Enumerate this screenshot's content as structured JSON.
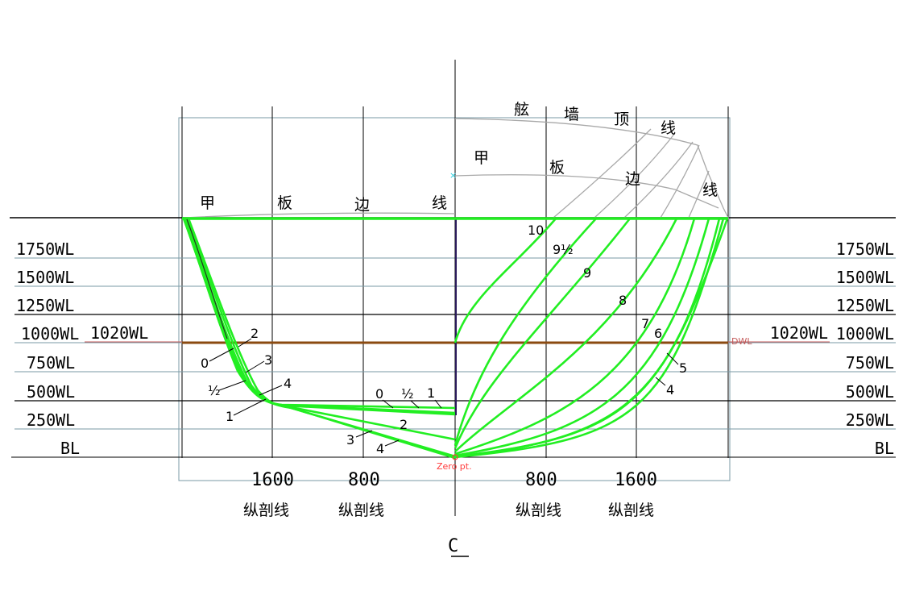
{
  "waterlines_left": [
    "1750WL",
    "1500WL",
    "1250WL",
    "1000WL",
    "750WL",
    "500WL",
    "250WL",
    "BL"
  ],
  "waterlines_right": [
    "1750WL",
    "1500WL",
    "1250WL",
    "1000WL",
    "750WL",
    "500WL",
    "250WL",
    "BL"
  ],
  "design_wl_label": "1020WL",
  "dwl_tag": "DWL",
  "zero_point_label": "Zero pt.",
  "centerline_symbol": "C",
  "buttock_values_left": [
    "1600",
    "800"
  ],
  "buttock_values_right": [
    "800",
    "1600"
  ],
  "buttock_caption": "纵剖线",
  "deck_edge_left_chars": [
    "甲",
    "板",
    "边",
    "线"
  ],
  "deck_edge_right_chars": [
    "甲",
    "板",
    "边",
    "线"
  ],
  "bulwark_top_chars": [
    "舷",
    "墙",
    "顶",
    "线"
  ],
  "stations_aft": [
    "0",
    "½",
    "1",
    "2",
    "3",
    "4"
  ],
  "stations_flat": [
    "0",
    "½",
    "1"
  ],
  "stations_flat_lower": [
    "2",
    "3",
    "4"
  ],
  "stations_fore": [
    "10",
    "9½",
    "9",
    "8",
    "7",
    "6",
    "5",
    "4"
  ],
  "colors": {
    "frame": "#000000",
    "grid": "#7a9aa6",
    "sections": "#22ee22",
    "upper": "#a8a8a8",
    "dwl": "#8b4a10",
    "centerline": "#1a1a4a",
    "zero": "#ff3b3b"
  }
}
